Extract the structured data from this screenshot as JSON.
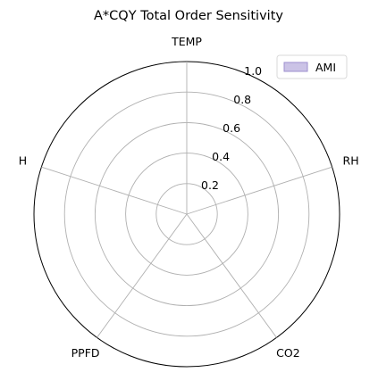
{
  "chart_data": {
    "type": "radar",
    "title": "A*CQY Total Order Sensitivity",
    "axes": [
      "TEMP",
      "RH",
      "CO2",
      "PPFD",
      "H"
    ],
    "rlim": [
      0,
      1.0
    ],
    "r_ticks": [
      "0.2",
      "0.4",
      "0.6",
      "0.8",
      "1.0"
    ],
    "r_tick_values": [
      0.2,
      0.4,
      0.6,
      0.8,
      1.0
    ],
    "series": [
      {
        "name": "AMI",
        "values": [
          0,
          0,
          0,
          0,
          0
        ]
      }
    ],
    "grid": true,
    "legend_position": "top-right",
    "colors": {
      "AMI_fill": "#cbc3e6",
      "AMI_edge": "#9e8fcf",
      "grid": "#b0b0b0",
      "frame": "#000000"
    }
  }
}
